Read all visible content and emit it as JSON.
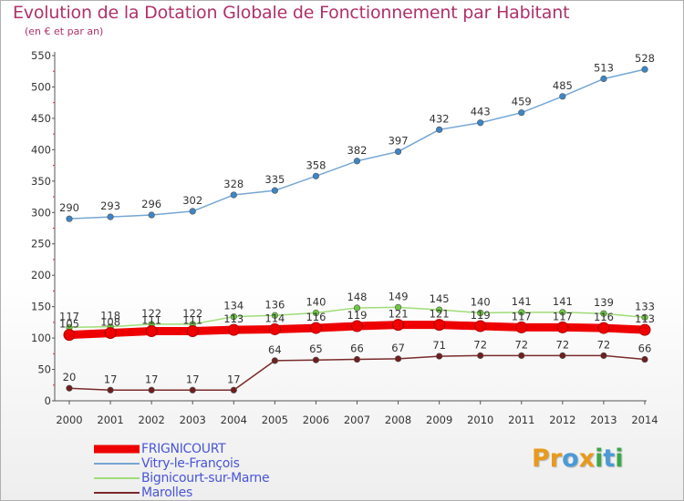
{
  "title": "Evolution de la Dotation Globale de Fonctionnement par Habitant",
  "subtitle": "(en € et par an)",
  "logo": {
    "letters": [
      "P",
      "r",
      "o",
      "x",
      "i",
      "t",
      "i"
    ],
    "colors": [
      "#e89a1c",
      "#e89a1c",
      "#4a9ad6",
      "#e89a1c",
      "#3aa84a",
      "#4a9ad6",
      "#3aa84a"
    ]
  },
  "chart_data": {
    "type": "line",
    "title": "Evolution de la Dotation Globale de Fonctionnement par Habitant",
    "subtitle": "(en € et par an)",
    "xlabel": "",
    "ylabel": "",
    "x": [
      "2000",
      "2001",
      "2002",
      "2003",
      "2004",
      "2005",
      "2006",
      "2007",
      "2008",
      "2009",
      "2010",
      "2011",
      "2012",
      "2013",
      "2014"
    ],
    "ylim": [
      0,
      550
    ],
    "yticks": [
      "0",
      "50",
      "100",
      "150",
      "200",
      "250",
      "300",
      "350",
      "400",
      "450",
      "500",
      "550"
    ],
    "grid": false,
    "legend_position": "bottom-left",
    "series": [
      {
        "name": "FRIGNICOURT",
        "color": "#ee0000",
        "line_width": 9,
        "marker_radius": 6,
        "values": [
          105,
          108,
          111,
          111,
          113,
          114,
          116,
          119,
          121,
          121,
          119,
          117,
          117,
          116,
          113
        ],
        "labels": [
          "105",
          "108",
          "111",
          "111",
          "113",
          "114",
          "116",
          "119",
          "121",
          "121",
          "119",
          "117",
          "117",
          "116",
          "113"
        ]
      },
      {
        "name": "Vitry-le-François",
        "color": "#76a6d4",
        "marker_color": "#3d86c6",
        "line_width": 1.5,
        "marker_radius": 3.3,
        "values": [
          290,
          293,
          296,
          302,
          328,
          335,
          358,
          382,
          397,
          432,
          443,
          459,
          485,
          513,
          528
        ],
        "labels": [
          "290",
          "293",
          "296",
          "302",
          "328",
          "335",
          "358",
          "382",
          "397",
          "432",
          "443",
          "459",
          "485",
          "513",
          "528"
        ]
      },
      {
        "name": "Bignicourt-sur-Marne",
        "color": "#a0dc78",
        "marker_color": "#6cc840",
        "line_width": 1.5,
        "marker_radius": 3.3,
        "values": [
          117,
          118,
          122,
          122,
          134,
          136,
          140,
          148,
          149,
          145,
          140,
          141,
          141,
          139,
          133
        ],
        "labels": [
          "117",
          "118",
          "122",
          "122",
          "134",
          "136",
          "140",
          "148",
          "149",
          "145",
          "140",
          "141",
          "141",
          "139",
          "133"
        ]
      },
      {
        "name": "Marolles",
        "color": "#7a2a2a",
        "marker_color": "#6e1f1f",
        "line_width": 1.5,
        "marker_radius": 3.3,
        "values": [
          20,
          17,
          17,
          17,
          17,
          64,
          65,
          66,
          67,
          71,
          72,
          72,
          72,
          72,
          66
        ],
        "labels": [
          "20",
          "17",
          "17",
          "17",
          "17",
          "64",
          "65",
          "66",
          "67",
          "71",
          "72",
          "72",
          "72",
          "72",
          "66"
        ]
      }
    ]
  }
}
